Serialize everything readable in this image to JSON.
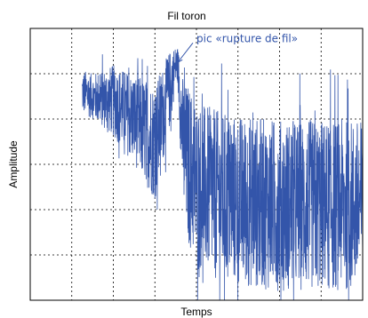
{
  "chart_data": {
    "type": "line",
    "title": "Fil toron",
    "xlabel": "Temps",
    "ylabel": "Amplitude",
    "xlim": [
      0,
      8
    ],
    "ylim": [
      -3,
      3
    ],
    "grid": true,
    "grid_style": "dotted",
    "x_ticks": [
      0,
      1,
      2,
      3,
      4,
      5,
      6,
      7,
      8
    ],
    "y_ticks": [
      -3,
      -2,
      -1,
      0,
      1,
      2,
      3
    ],
    "x_tick_labels": [],
    "y_tick_labels": [],
    "line_color": "#3355aa",
    "series": [
      {
        "name": "",
        "signal": {
          "onset_x": 1.25,
          "x_end": 8,
          "samples": 1500,
          "envelope_x": [
            1.25,
            1.5,
            2.0,
            2.5,
            3.0,
            3.4,
            3.5,
            3.55,
            3.6,
            3.7,
            3.8,
            4.0,
            4.5,
            5.0,
            6.0,
            7.0,
            8.0
          ],
          "center_y": [
            1.6,
            1.5,
            1.4,
            1.0,
            0.5,
            1.8,
            2.2,
            2.2,
            1.5,
            0.3,
            0.0,
            -0.4,
            -0.7,
            -0.8,
            -0.9,
            -0.9,
            -0.9
          ],
          "amplitude": [
            0.5,
            0.5,
            0.8,
            1.0,
            1.3,
            0.8,
            0.4,
            0.4,
            0.9,
            1.5,
            1.8,
            1.8,
            1.9,
            1.9,
            1.9,
            1.9,
            1.9
          ],
          "min_y": -3.0,
          "max_y": 2.8
        }
      }
    ],
    "annotations": [
      {
        "text": "pic «rupture de fil»",
        "color": "#3355aa",
        "x": 4.0,
        "y": 2.7,
        "arrow_to": [
          3.55,
          2.25
        ]
      }
    ]
  }
}
